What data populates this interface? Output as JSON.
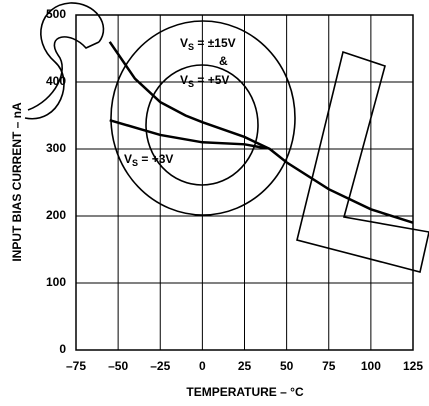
{
  "chart_data": {
    "type": "line",
    "x_label": "TEMPERATURE – °C",
    "y_label": "INPUT BIAS CURRENT – nA",
    "xlim": [
      -75,
      125
    ],
    "ylim": [
      0,
      500
    ],
    "xticks": [
      {
        "value": -75,
        "label": "–75"
      },
      {
        "value": -50,
        "label": "–50"
      },
      {
        "value": -25,
        "label": "–25"
      },
      0,
      25,
      50,
      75,
      100,
      125
    ],
    "yticks": [
      0,
      100,
      200,
      300,
      400,
      500
    ],
    "grid": true,
    "series": [
      {
        "color": "#000000",
        "x": [
          -55,
          -40,
          -25,
          -10,
          0,
          25,
          40,
          50,
          75,
          100,
          125
        ],
        "values": [
          460,
          405,
          370,
          350,
          340,
          318,
          300,
          280,
          240,
          210,
          190
        ]
      },
      {
        "color": "#000000",
        "x": [
          -55,
          -25,
          0,
          25,
          38
        ],
        "values": [
          343,
          321,
          310,
          307,
          301
        ]
      }
    ],
    "annotations": [
      {
        "main": "V",
        "sub": "S",
        "rest": " = ±15V"
      },
      {
        "main": "&"
      },
      {
        "main": "V",
        "sub": "S",
        "rest": " = +5V"
      },
      {
        "main": "V",
        "sub": "S",
        "rest": " = +3V"
      }
    ]
  }
}
